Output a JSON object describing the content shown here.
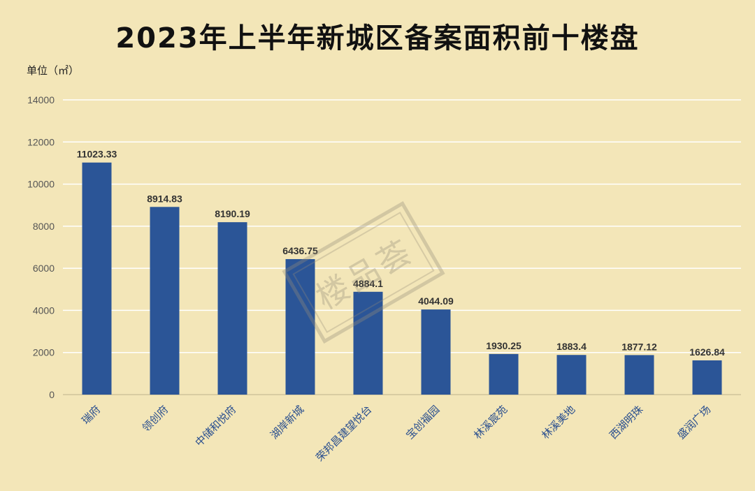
{
  "chart_data": {
    "type": "bar",
    "title": "2023年上半年新城区备案面积前十楼盘",
    "unit": "单位（㎡）",
    "categories": [
      "瑞府",
      "领创府",
      "中储和悦府",
      "湖岸新城",
      "荣邦昌建望悦台",
      "宝创福园",
      "林溪宸苑",
      "林溪美地",
      "西湖明珠",
      "盛润广场"
    ],
    "values": [
      11023.33,
      8914.83,
      8190.19,
      6436.75,
      4884.1,
      4044.09,
      1930.25,
      1883.4,
      1877.12,
      1626.84
    ],
    "value_labels": [
      "11023.33",
      "8914.83",
      "8190.19",
      "6436.75",
      "4884.1",
      "4044.09",
      "1930.25",
      "1883.4",
      "1877.12",
      "1626.84"
    ],
    "ylim": [
      0,
      14000
    ],
    "yticks": [
      0,
      2000,
      4000,
      6000,
      8000,
      10000,
      12000,
      14000
    ],
    "grid": true,
    "bar_color": "#2b5597",
    "background_color": "#f3e6b8"
  },
  "watermark": "楼品荟"
}
